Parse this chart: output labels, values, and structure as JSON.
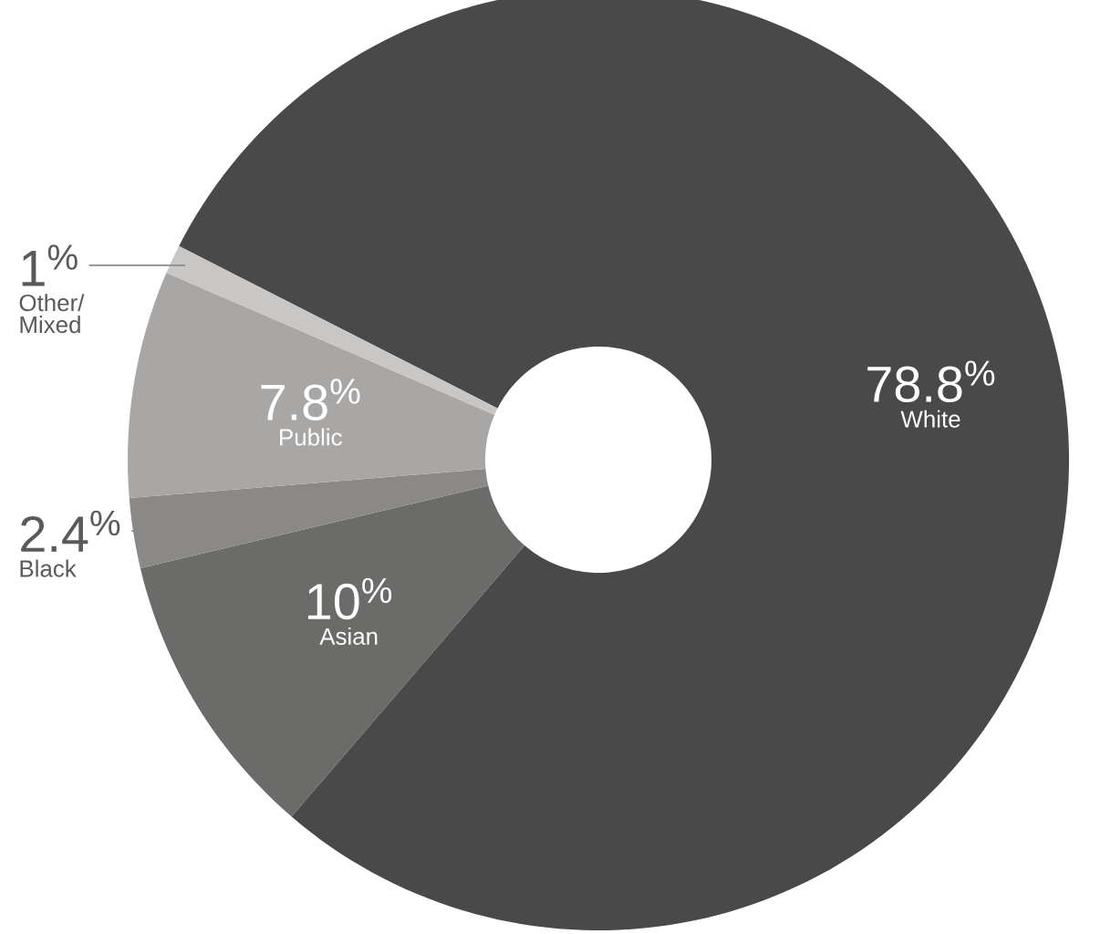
{
  "chart_data": {
    "type": "donut",
    "categories": [
      "White",
      "Asian",
      "Black",
      "Public",
      "Other/ Mixed"
    ],
    "values": [
      78.8,
      10,
      2.4,
      7.8,
      1
    ],
    "value_labels": [
      "78.8$^{%}$",
      "10$^{%}$",
      "2.4$^{%}$",
      "7.8$^{%}$",
      "1$^{%}$"
    ],
    "colors": [
      "#4a4949",
      "#6b6b69",
      "#8a8988",
      "#a9a7a5",
      "#c9c7c5"
    ]
  }
}
